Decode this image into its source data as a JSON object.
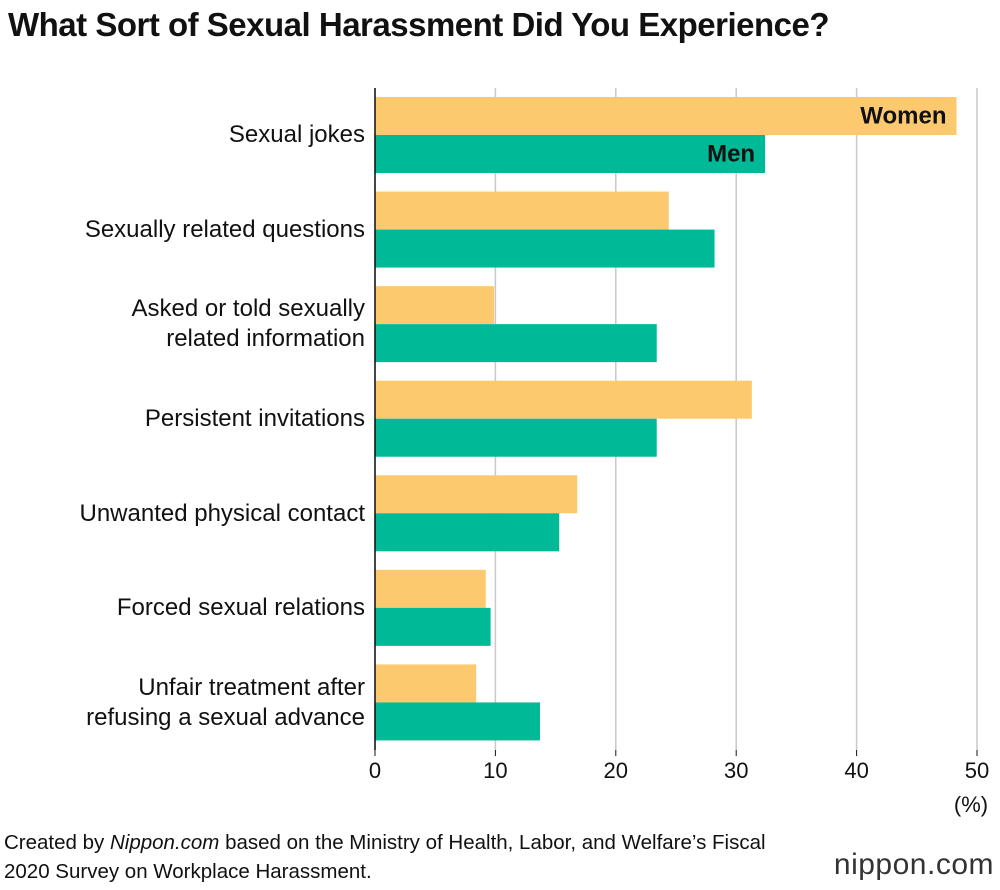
{
  "chart_data": {
    "type": "hbar",
    "title": "What Sort of Sexual Harassment Did You Experience?",
    "categories": [
      "Sexual jokes",
      "Sexually related questions",
      "Asked or told sexually\nrelated information",
      "Persistent invitations",
      "Unwanted physical contact",
      "Forced sexual relations",
      "Unfair treatment after\nrefusing a sexual advance"
    ],
    "series": [
      {
        "name": "Women",
        "color": "#fdc96f",
        "values": [
          48.3,
          24.4,
          9.9,
          31.3,
          16.8,
          9.2,
          8.4
        ]
      },
      {
        "name": "Men",
        "color": "#00b996",
        "values": [
          32.4,
          28.2,
          23.4,
          23.4,
          15.3,
          9.6,
          13.7
        ]
      }
    ],
    "xlim": [
      0,
      50
    ],
    "xticks": [
      0,
      10,
      20,
      30,
      40,
      50
    ],
    "xlabel": "(%)",
    "grid": true,
    "source": {
      "before": "Created by ",
      "italic": "Nippon.com",
      "after": " based on the Ministry of Health, Labor, and Welfare’s Fiscal 2020 Survey on Workplace Harassment."
    },
    "logo": "nippon.com"
  }
}
